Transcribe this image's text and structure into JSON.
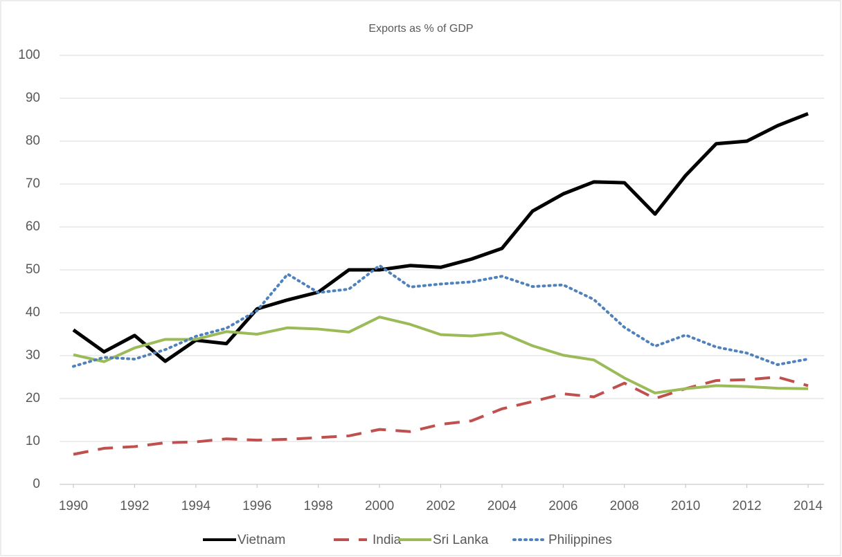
{
  "chart_data": {
    "type": "line",
    "title": "Exports as % of GDP",
    "x": [
      1990,
      1991,
      1992,
      1993,
      1994,
      1995,
      1996,
      1997,
      1998,
      1999,
      2000,
      2001,
      2002,
      2003,
      2004,
      2005,
      2006,
      2007,
      2008,
      2009,
      2010,
      2011,
      2012,
      2013,
      2014
    ],
    "series": [
      {
        "name": "Vietnam",
        "color": "#000000",
        "style": "solid",
        "values": [
          36,
          30.9,
          34.7,
          28.7,
          33.6,
          32.8,
          40.9,
          43.0,
          44.8,
          50.0,
          50.0,
          51.0,
          50.6,
          52.5,
          55.0,
          63.7,
          67.7,
          70.5,
          70.3,
          63.0,
          72.0,
          79.4,
          80.0,
          83.6,
          86.4
        ]
      },
      {
        "name": "India",
        "color": "#c0504d",
        "style": "dashed",
        "values": [
          7.0,
          8.4,
          8.8,
          9.7,
          9.9,
          10.6,
          10.3,
          10.5,
          10.9,
          11.3,
          12.8,
          12.3,
          14.0,
          14.8,
          17.6,
          19.3,
          21.1,
          20.4,
          23.6,
          20.0,
          22.3,
          24.2,
          24.4,
          25.0,
          23.0
        ]
      },
      {
        "name": "Sri Lanka",
        "color": "#9bbb59",
        "style": "solid",
        "values": [
          30.2,
          28.6,
          31.8,
          33.8,
          33.8,
          35.6,
          35.0,
          36.5,
          36.2,
          35.5,
          39.0,
          37.3,
          34.9,
          34.6,
          35.3,
          32.3,
          30.1,
          29.0,
          24.8,
          21.3,
          22.3,
          23.0,
          22.8,
          22.4,
          22.3
        ]
      },
      {
        "name": "Philippines",
        "color": "#4f81bd",
        "style": "dotted",
        "values": [
          27.5,
          29.6,
          29.2,
          31.4,
          34.5,
          36.4,
          40.5,
          49.0,
          44.7,
          45.5,
          51.0,
          46.0,
          46.7,
          47.2,
          48.5,
          46.1,
          46.5,
          43.1,
          36.6,
          32.2,
          34.8,
          32.0,
          30.6,
          27.9,
          29.2
        ]
      }
    ],
    "xlim": [
      1990,
      2014
    ],
    "xticks": [
      1990,
      1992,
      1994,
      1996,
      1998,
      2000,
      2002,
      2004,
      2006,
      2008,
      2010,
      2012,
      2014
    ],
    "ylim": [
      0,
      100
    ],
    "yticks": [
      0,
      10,
      20,
      30,
      40,
      50,
      60,
      70,
      80,
      90,
      100
    ],
    "grid": true,
    "legend": "bottom"
  }
}
